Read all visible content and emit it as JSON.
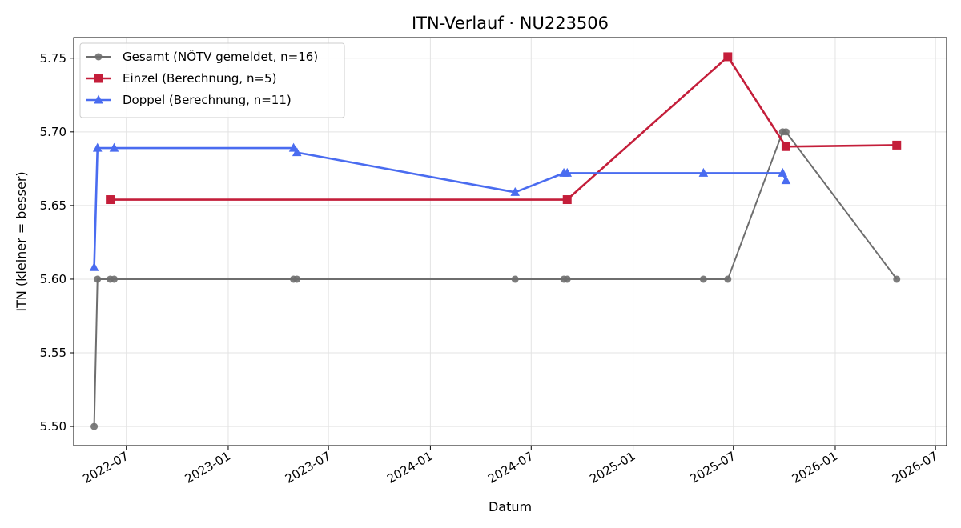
{
  "chart_data": {
    "type": "line",
    "title": "ITN-Verlauf · NU223506",
    "xlabel": "Datum",
    "ylabel": "ITN  (kleiner = besser)",
    "x_type": "date",
    "xlim": [
      "2022-03-28",
      "2026-07-21"
    ],
    "ylim": [
      5.487,
      5.764
    ],
    "x_ticks": [
      "2022-07-01",
      "2023-01-01",
      "2023-07-01",
      "2024-01-01",
      "2024-07-01",
      "2025-01-01",
      "2025-07-01",
      "2026-01-01",
      "2026-07-01"
    ],
    "x_tick_labels": [
      "2022-07",
      "2023-01",
      "2023-07",
      "2024-01",
      "2024-07",
      "2025-01",
      "2025-07",
      "2026-01",
      "2026-07"
    ],
    "y_ticks": [
      5.5,
      5.55,
      5.6,
      5.65,
      5.7,
      5.75
    ],
    "y_tick_labels": [
      "5.50",
      "5.55",
      "5.60",
      "5.65",
      "5.70",
      "5.75"
    ],
    "grid": true,
    "legend_position": "top-left",
    "series": [
      {
        "name": "Gesamt (NÖTV gemeldet, n=16)",
        "color": "#6e6e6e",
        "marker": "circle",
        "points": [
          [
            "2022-05-04",
            5.5
          ],
          [
            "2022-05-10",
            5.6
          ],
          [
            "2022-06-02",
            5.6
          ],
          [
            "2022-06-09",
            5.6
          ],
          [
            "2023-04-29",
            5.6
          ],
          [
            "2023-05-05",
            5.6
          ],
          [
            "2024-06-02",
            5.6
          ],
          [
            "2024-08-29",
            5.6
          ],
          [
            "2024-09-04",
            5.6
          ],
          [
            "2025-05-08",
            5.6
          ],
          [
            "2025-06-21",
            5.6
          ],
          [
            "2025-09-28",
            5.7
          ],
          [
            "2025-10-04",
            5.7
          ],
          [
            "2026-04-22",
            5.6
          ]
        ]
      },
      {
        "name": "Einzel (Berechnung, n=5)",
        "color": "#c41e3a",
        "marker": "square",
        "points": [
          [
            "2022-06-02",
            5.654
          ],
          [
            "2024-09-04",
            5.654
          ],
          [
            "2025-06-21",
            5.751
          ],
          [
            "2025-10-04",
            5.69
          ],
          [
            "2026-04-22",
            5.691
          ]
        ]
      },
      {
        "name": "Doppel (Berechnung, n=11)",
        "color": "#4a6cf0",
        "marker": "triangle",
        "points": [
          [
            "2022-05-04",
            5.608
          ],
          [
            "2022-05-10",
            5.689
          ],
          [
            "2022-06-09",
            5.689
          ],
          [
            "2023-04-29",
            5.689
          ],
          [
            "2023-05-05",
            5.686
          ],
          [
            "2024-06-02",
            5.659
          ],
          [
            "2024-08-29",
            5.672
          ],
          [
            "2024-09-04",
            5.672
          ],
          [
            "2025-05-08",
            5.672
          ],
          [
            "2025-09-28",
            5.672
          ],
          [
            "2025-10-04",
            5.667
          ]
        ]
      }
    ]
  }
}
